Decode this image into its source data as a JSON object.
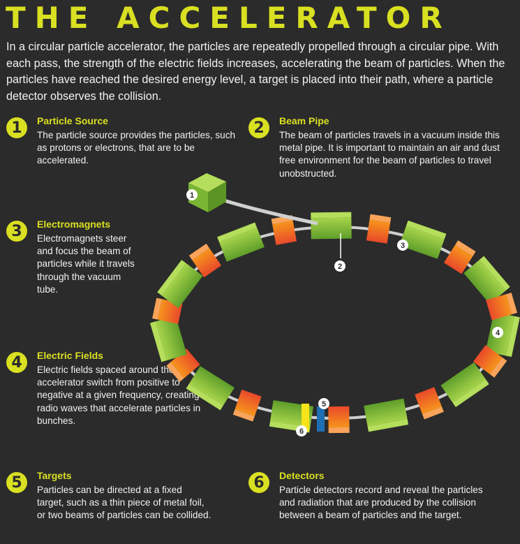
{
  "title": "THE ACCELERATOR",
  "intro": "In a circular particle accelerator, the particles are repeatedly propelled through a circular pipe. With each pass, the strength of the electric fields increases, accelerating the beam of particles. When the particles have reached the desired energy level, a target is placed into their path, where a particle detector observes the collision.",
  "sections": [
    {
      "number": "1",
      "heading": "Particle Source",
      "text": "The particle source provides the particles, such as protons or electrons, that are to be accelerated."
    },
    {
      "number": "2",
      "heading": "Beam Pipe",
      "text": "The beam of particles travels in a vacuum inside this metal pipe. It is important to maintain an air and dust free environment for the beam of particles to travel unobstructed."
    },
    {
      "number": "3",
      "heading": "Electromagnets",
      "text": "Electromagnets steer and focus the beam of particles while it travels through the vacuum tube."
    },
    {
      "number": "4",
      "heading": "Electric Fields",
      "text": "Electric fields spaced around the accelerator switch from positive to negative at a given frequency, creating radio waves that accelerate particles in bunches."
    },
    {
      "number": "5",
      "heading": "Targets",
      "text": "Particles can be directed at a fixed target, such as a thin piece of metal foil, or two beams of particles can be collided."
    },
    {
      "number": "6",
      "heading": "Detectors",
      "text": "Particle detectors record and reveal the particles and radiation that are produced by the collision between a beam of particles and the target."
    }
  ],
  "diagram_callouts": [
    "1",
    "2",
    "3",
    "4",
    "5",
    "6"
  ],
  "colors": {
    "accent": "#d9e021",
    "background": "#2b2b2b",
    "magnet_green": "#8cc63f",
    "field_orange": "#f26522",
    "target_yellow": "#f7e319",
    "detector_blue": "#1f6fb5",
    "pipe": "#d0d0d0"
  }
}
